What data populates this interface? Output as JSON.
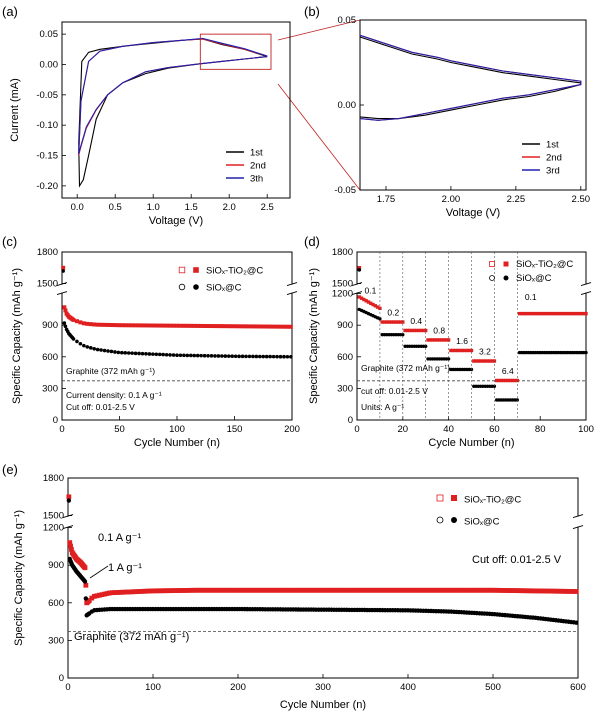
{
  "chart_data": [
    {
      "panel": "(a)",
      "type": "line",
      "xlabel": "Voltage (V)",
      "ylabel": "Current (mA)",
      "xlim": [
        -0.2,
        2.8
      ],
      "ylim": [
        -0.22,
        0.07
      ],
      "xticks": [
        "0.0",
        "0.5",
        "1.0",
        "1.5",
        "2.0",
        "2.5"
      ],
      "yticks": [
        "0.05",
        "0.00",
        "-0.05",
        "-0.10",
        "-0.15",
        "-0.20"
      ],
      "legend": [
        "1st",
        "2nd",
        "3th"
      ],
      "legend_position": "bottom-right",
      "colors": [
        "#000000",
        "#e02020",
        "#2020b0"
      ],
      "series": [
        {
          "name": "1st",
          "x": [
            2.5,
            2.2,
            1.9,
            1.6,
            1.2,
            0.9,
            0.6,
            0.4,
            0.25,
            0.15,
            0.08,
            0.03,
            0.02,
            0.06,
            0.15,
            0.3,
            0.6,
            1.0,
            1.4,
            1.65,
            1.9,
            2.2,
            2.5
          ],
          "y": [
            0.013,
            0.009,
            0.005,
            0.001,
            -0.006,
            -0.015,
            -0.03,
            -0.05,
            -0.09,
            -0.15,
            -0.19,
            -0.2,
            -0.13,
            0.005,
            0.02,
            0.025,
            0.03,
            0.035,
            0.04,
            0.042,
            0.033,
            0.025,
            0.013
          ]
        },
        {
          "name": "2nd",
          "x": [
            2.5,
            2.2,
            1.9,
            1.6,
            1.2,
            0.9,
            0.6,
            0.4,
            0.25,
            0.12,
            0.04,
            0.02,
            0.05,
            0.15,
            0.3,
            0.6,
            1.0,
            1.4,
            1.65,
            1.9,
            2.2,
            2.5
          ],
          "y": [
            0.013,
            0.009,
            0.005,
            0.001,
            -0.005,
            -0.012,
            -0.03,
            -0.05,
            -0.075,
            -0.105,
            -0.14,
            -0.15,
            -0.06,
            0.005,
            0.022,
            0.03,
            0.036,
            0.04,
            0.042,
            0.034,
            0.025,
            0.014
          ]
        },
        {
          "name": "3th",
          "x": [
            2.5,
            2.2,
            1.9,
            1.6,
            1.2,
            0.9,
            0.6,
            0.4,
            0.25,
            0.12,
            0.04,
            0.02,
            0.05,
            0.15,
            0.3,
            0.6,
            1.0,
            1.4,
            1.65,
            1.9,
            2.2,
            2.5
          ],
          "y": [
            0.013,
            0.009,
            0.005,
            0.001,
            -0.005,
            -0.012,
            -0.03,
            -0.05,
            -0.074,
            -0.103,
            -0.138,
            -0.148,
            -0.06,
            0.005,
            0.022,
            0.03,
            0.036,
            0.04,
            0.043,
            0.035,
            0.026,
            0.014
          ]
        }
      ]
    },
    {
      "panel": "(b)",
      "type": "line",
      "xlabel": "Voltage (V)",
      "ylabel": "",
      "xlim": [
        1.65,
        2.52
      ],
      "ylim": [
        -0.05,
        0.05
      ],
      "xticks": [
        "1.75",
        "2.00",
        "2.25",
        "2.50"
      ],
      "yticks": [
        "0.05",
        "0.00",
        "-0.05"
      ],
      "legend": [
        "1st",
        "2nd",
        "3rd"
      ],
      "legend_position": "bottom-right",
      "colors": [
        "#000000",
        "#e02020",
        "#2020b0"
      ],
      "series": [
        {
          "name": "1st",
          "x": [
            1.65,
            1.75,
            1.85,
            1.95,
            2.0,
            2.1,
            2.2,
            2.3,
            2.4,
            2.5,
            2.5,
            2.4,
            2.3,
            2.2,
            2.1,
            2.0,
            1.9,
            1.8,
            1.72,
            1.65
          ],
          "y": [
            0.04,
            0.035,
            0.03,
            0.027,
            0.025,
            0.022,
            0.019,
            0.017,
            0.015,
            0.013,
            0.012,
            0.008,
            0.005,
            0.003,
            0.0,
            -0.003,
            -0.006,
            -0.008,
            -0.008,
            -0.007
          ]
        },
        {
          "name": "2nd",
          "x": [
            1.65,
            1.75,
            1.85,
            1.95,
            2.0,
            2.1,
            2.2,
            2.3,
            2.4,
            2.5,
            2.5,
            2.4,
            2.3,
            2.2,
            2.1,
            2.0,
            1.9,
            1.8,
            1.72,
            1.65
          ],
          "y": [
            0.041,
            0.036,
            0.031,
            0.028,
            0.026,
            0.023,
            0.02,
            0.018,
            0.016,
            0.014,
            0.012,
            0.009,
            0.006,
            0.004,
            0.001,
            -0.002,
            -0.005,
            -0.008,
            -0.009,
            -0.008
          ]
        },
        {
          "name": "3rd",
          "x": [
            1.65,
            1.75,
            1.85,
            1.95,
            2.0,
            2.1,
            2.2,
            2.3,
            2.4,
            2.5,
            2.5,
            2.4,
            2.3,
            2.2,
            2.1,
            2.0,
            1.9,
            1.8,
            1.72,
            1.65
          ],
          "y": [
            0.041,
            0.036,
            0.031,
            0.028,
            0.026,
            0.023,
            0.02,
            0.018,
            0.016,
            0.014,
            0.012,
            0.009,
            0.006,
            0.004,
            0.001,
            -0.002,
            -0.005,
            -0.008,
            -0.009,
            -0.008
          ]
        }
      ]
    },
    {
      "panel": "(c)",
      "type": "scatter",
      "xlabel": "Cycle Number (n)",
      "ylabel": "Specific Capacity (mAh g⁻¹)",
      "xlim": [
        0,
        200
      ],
      "xticks": [
        "0",
        "50",
        "100",
        "150",
        "200"
      ],
      "yticks": [
        "0",
        "300",
        "600",
        "900",
        "1500",
        "1800"
      ],
      "axis_break": "1200-1500",
      "legend": [
        "SiOₓ-TiO₂@C",
        "SiOₓ@C"
      ],
      "legend_position": "top-right",
      "colors": [
        "#e02020",
        "#000000"
      ],
      "graphite_label": "Graphite (372 mAh g⁻¹)",
      "graphite_value": 372,
      "annotations": [
        "Current density: 0.1 A g⁻¹",
        "Cut off: 0.01-2.5 V"
      ],
      "series": [
        {
          "name": "SiOₓ-TiO₂@C",
          "x": [
            1,
            2,
            4,
            6,
            10,
            15,
            20,
            30,
            50,
            100,
            150,
            200
          ],
          "y": [
            1650,
            1070,
            1010,
            980,
            950,
            930,
            915,
            905,
            900,
            895,
            890,
            885
          ]
        },
        {
          "name": "SiOₓ@C",
          "x": [
            1,
            2,
            4,
            6,
            10,
            15,
            20,
            30,
            50,
            100,
            150,
            200
          ],
          "y": [
            1620,
            920,
            860,
            820,
            770,
            730,
            700,
            670,
            640,
            615,
            605,
            600
          ]
        }
      ]
    },
    {
      "panel": "(d)",
      "type": "scatter",
      "xlabel": "Cycle Number (n)",
      "ylabel": "Specific Capacity (mAh g⁻¹)",
      "xlim": [
        0,
        100
      ],
      "xticks": [
        "0",
        "20",
        "40",
        "60",
        "80",
        "100"
      ],
      "yticks": [
        "0",
        "300",
        "600",
        "900",
        "1200",
        "1500",
        "1800"
      ],
      "axis_break": "1200-1500",
      "legend": [
        "SiOₓ-TiO₂@C",
        "SiOₓ@C"
      ],
      "legend_position": "top-right",
      "colors": [
        "#e02020",
        "#000000"
      ],
      "graphite_label": "Graphite (372 mAh g⁻¹)",
      "graphite_value": 372,
      "annotations": [
        "cut off: 0.01-2.5 V",
        "Units: A g⁻¹"
      ],
      "rate_labels": [
        "0.1",
        "0.2",
        "0.4",
        "0.8",
        "1.6",
        "3.2",
        "6.4",
        "0.1"
      ],
      "rate_segments": [
        [
          0,
          10
        ],
        [
          10,
          20
        ],
        [
          20,
          30
        ],
        [
          30,
          40
        ],
        [
          40,
          50
        ],
        [
          50,
          60
        ],
        [
          60,
          70
        ],
        [
          70,
          100
        ]
      ],
      "series": [
        {
          "name": "SiOₓ-TiO₂@C",
          "segment_values": [
            1060,
            930,
            850,
            760,
            660,
            560,
            375,
            1010
          ]
        },
        {
          "name": "SiOₓ@C",
          "segment_values": [
            960,
            810,
            700,
            580,
            480,
            320,
            190,
            640
          ]
        }
      ]
    },
    {
      "panel": "(e)",
      "type": "scatter",
      "xlabel": "Cycle Number (n)",
      "ylabel": "Specific Capacity (mAh g⁻¹)",
      "xlim": [
        0,
        600
      ],
      "xticks": [
        "0",
        "100",
        "200",
        "300",
        "400",
        "500",
        "600"
      ],
      "yticks": [
        "0",
        "300",
        "600",
        "900",
        "1200",
        "1500",
        "1800"
      ],
      "axis_break": "1200-1500",
      "legend": [
        "SiOₓ-TiO₂@C",
        "SiOₓ@C"
      ],
      "legend_position": "top-right",
      "colors": [
        "#e02020",
        "#000000"
      ],
      "graphite_label": "Graphite (372 mAh g⁻¹)",
      "graphite_value": 372,
      "annotations": [
        "0.1 A g⁻¹",
        "1 A g⁻¹",
        "Cut off: 0.01-2.5 V"
      ],
      "series": [
        {
          "name": "SiOₓ-TiO₂@C",
          "x": [
            1,
            2,
            5,
            10,
            15,
            20,
            22,
            30,
            50,
            100,
            150,
            200,
            300,
            400,
            500,
            550,
            600
          ],
          "y": [
            1650,
            1080,
            1000,
            950,
            920,
            880,
            600,
            650,
            680,
            695,
            700,
            700,
            700,
            700,
            700,
            695,
            690
          ]
        },
        {
          "name": "SiOₓ@C",
          "x": [
            1,
            2,
            5,
            10,
            15,
            20,
            22,
            30,
            50,
            100,
            150,
            200,
            300,
            400,
            450,
            500,
            550,
            600
          ],
          "y": [
            1620,
            950,
            900,
            850,
            810,
            770,
            500,
            540,
            550,
            550,
            550,
            550,
            545,
            540,
            530,
            510,
            480,
            440
          ]
        }
      ]
    }
  ]
}
